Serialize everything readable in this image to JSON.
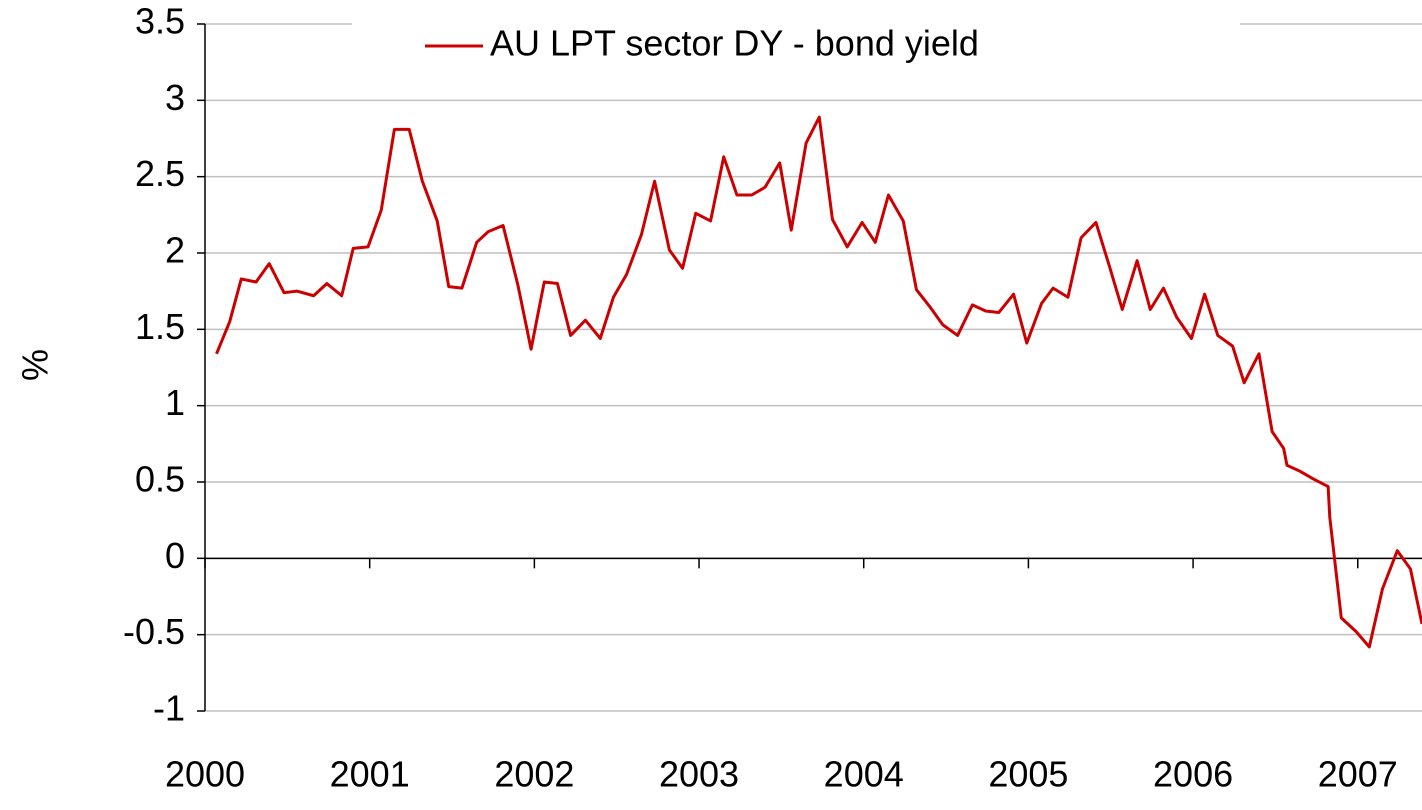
{
  "chart_data": {
    "type": "line",
    "ylabel": "%",
    "series": [
      {
        "name": "AU LPT sector DY - bond yield",
        "color": "#cc0000",
        "x": [
          2000.07,
          2000.15,
          2000.22,
          2000.31,
          2000.39,
          2000.48,
          2000.56,
          2000.66,
          2000.74,
          2000.83,
          2000.9,
          2000.99,
          2001.07,
          2001.15,
          2001.24,
          2001.32,
          2001.41,
          2001.48,
          2001.56,
          2001.65,
          2001.72,
          2001.81,
          2001.9,
          2001.98,
          2002.06,
          2002.14,
          2002.22,
          2002.31,
          2002.4,
          2002.48,
          2002.56,
          2002.65,
          2002.73,
          2002.82,
          2002.9,
          2002.98,
          2003.07,
          2003.15,
          2003.23,
          2003.32,
          2003.4,
          2003.49,
          2003.56,
          2003.65,
          2003.73,
          2003.81,
          2003.9,
          2003.99,
          2004.07,
          2004.15,
          2004.24,
          2004.32,
          2004.4,
          2004.48,
          2004.57,
          2004.66,
          2004.74,
          2004.82,
          2004.91,
          2004.99,
          2005.08,
          2005.15,
          2005.24,
          2005.32,
          2005.41,
          2005.49,
          2005.57,
          2005.66,
          2005.74,
          2005.82,
          2005.9,
          2005.99,
          2006.07,
          2006.15,
          2006.24,
          2006.31,
          2006.4,
          2006.48,
          2006.55,
          2006.57,
          2006.65,
          2006.73,
          2006.82,
          2006.83,
          2006.9,
          2006.99,
          2007.07,
          2007.15,
          2007.24,
          2007.32,
          2007.39
        ],
        "values": [
          1.34,
          1.55,
          1.83,
          1.81,
          1.93,
          1.74,
          1.75,
          1.72,
          1.8,
          1.72,
          2.03,
          2.04,
          2.28,
          2.81,
          2.81,
          2.47,
          2.21,
          1.78,
          1.77,
          2.07,
          2.14,
          2.18,
          1.79,
          1.37,
          1.81,
          1.8,
          1.46,
          1.56,
          1.44,
          1.71,
          1.86,
          2.12,
          2.47,
          2.02,
          1.9,
          2.26,
          2.21,
          2.63,
          2.38,
          2.38,
          2.43,
          2.59,
          2.15,
          2.72,
          2.89,
          2.22,
          2.04,
          2.2,
          2.07,
          2.38,
          2.21,
          1.76,
          1.65,
          1.53,
          1.46,
          1.66,
          1.62,
          1.61,
          1.73,
          1.41,
          1.67,
          1.77,
          1.71,
          2.1,
          2.2,
          1.92,
          1.63,
          1.95,
          1.63,
          1.77,
          1.58,
          1.44,
          1.73,
          1.46,
          1.39,
          1.15,
          1.34,
          0.83,
          0.72,
          0.61,
          0.57,
          0.52,
          0.47,
          0.27,
          -0.39,
          -0.48,
          -0.58,
          -0.2,
          0.05,
          -0.07,
          -0.43
        ]
      }
    ],
    "xlim": [
      2000,
      2007.39
    ],
    "xticks": [
      2000,
      2001,
      2002,
      2003,
      2004,
      2005,
      2006,
      2007
    ],
    "ylim": [
      -1,
      3.5
    ],
    "yticks": [
      -1,
      -0.5,
      0,
      0.5,
      1,
      1.5,
      2,
      2.5,
      3,
      3.5
    ],
    "grid": true
  }
}
